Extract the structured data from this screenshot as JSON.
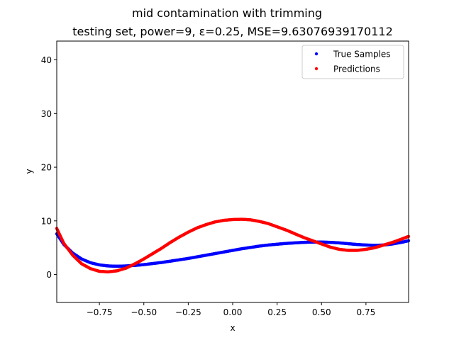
{
  "chart_data": {
    "type": "scatter",
    "title_line1": "mid contamination with trimming",
    "title_line2": "testing set, power=9, ε=0.25, MSE=9.63076939170112",
    "xlabel": "x",
    "ylabel": "y",
    "xlim": [
      -0.99,
      0.99
    ],
    "ylim": [
      -5.2,
      43.5
    ],
    "xticks": [
      -0.75,
      -0.5,
      -0.25,
      0.0,
      0.25,
      0.5,
      0.75
    ],
    "xtick_labels": [
      "−0.75",
      "−0.50",
      "−0.25",
      "0.00",
      "0.25",
      "0.50",
      "0.75"
    ],
    "yticks": [
      0,
      10,
      20,
      30,
      40
    ],
    "ytick_labels": [
      "0",
      "10",
      "20",
      "30",
      "40"
    ],
    "grid": false,
    "legend_position": "top-right",
    "series": [
      {
        "name": "True Samples",
        "color": "#0000ff",
        "x": [
          -0.99,
          -0.95,
          -0.9,
          -0.85,
          -0.8,
          -0.75,
          -0.7,
          -0.65,
          -0.6,
          -0.55,
          -0.5,
          -0.45,
          -0.4,
          -0.35,
          -0.3,
          -0.25,
          -0.2,
          -0.15,
          -0.1,
          -0.05,
          0.0,
          0.05,
          0.1,
          0.15,
          0.2,
          0.25,
          0.3,
          0.35,
          0.4,
          0.45,
          0.5,
          0.55,
          0.6,
          0.65,
          0.7,
          0.75,
          0.8,
          0.85,
          0.9,
          0.95,
          0.99
        ],
        "y": [
          7.6,
          5.6,
          4.0,
          2.9,
          2.2,
          1.8,
          1.6,
          1.55,
          1.6,
          1.7,
          1.85,
          2.05,
          2.25,
          2.5,
          2.75,
          3.0,
          3.3,
          3.6,
          3.9,
          4.2,
          4.5,
          4.8,
          5.05,
          5.3,
          5.5,
          5.65,
          5.8,
          5.9,
          6.0,
          6.05,
          6.05,
          6.0,
          5.9,
          5.75,
          5.6,
          5.5,
          5.45,
          5.5,
          5.7,
          6.0,
          6.3
        ]
      },
      {
        "name": "Predictions",
        "color": "#ff0000",
        "x": [
          -0.99,
          -0.95,
          -0.9,
          -0.85,
          -0.8,
          -0.75,
          -0.7,
          -0.65,
          -0.6,
          -0.55,
          -0.5,
          -0.45,
          -0.4,
          -0.35,
          -0.3,
          -0.25,
          -0.2,
          -0.15,
          -0.1,
          -0.05,
          0.0,
          0.05,
          0.1,
          0.15,
          0.2,
          0.25,
          0.3,
          0.35,
          0.4,
          0.45,
          0.5,
          0.55,
          0.6,
          0.65,
          0.7,
          0.75,
          0.8,
          0.85,
          0.9,
          0.95,
          0.99
        ],
        "y": [
          8.6,
          5.8,
          3.6,
          2.0,
          1.1,
          0.6,
          0.5,
          0.7,
          1.2,
          2.0,
          2.9,
          3.9,
          4.9,
          6.0,
          7.0,
          7.9,
          8.7,
          9.3,
          9.8,
          10.1,
          10.25,
          10.3,
          10.2,
          9.9,
          9.5,
          8.9,
          8.3,
          7.6,
          6.9,
          6.3,
          5.7,
          5.1,
          4.7,
          4.5,
          4.5,
          4.7,
          5.0,
          5.5,
          6.0,
          6.6,
          7.1
        ]
      }
    ]
  }
}
